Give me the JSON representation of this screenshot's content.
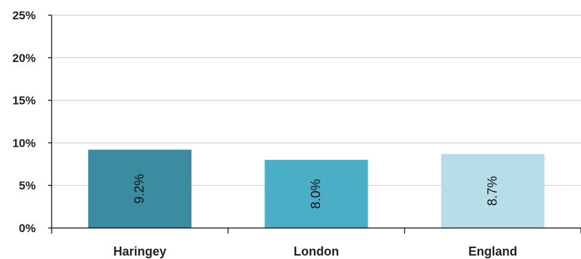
{
  "chart_data": {
    "type": "bar",
    "title": "",
    "xlabel": "",
    "ylabel": "",
    "categories": [
      "Haringey",
      "London",
      "England"
    ],
    "values": [
      9.2,
      8.0,
      8.7
    ],
    "data_labels": [
      "9.2%",
      "8.0%",
      "8.7%"
    ],
    "bar_colors": [
      "#3b8ba1",
      "#4aaec6",
      "#b7dde8"
    ],
    "ylim": [
      0,
      25
    ],
    "yticks": [
      0,
      5,
      10,
      15,
      20,
      25
    ],
    "ytick_labels": [
      "0%",
      "5%",
      "10%",
      "15%",
      "20%",
      "25%"
    ],
    "grid": true,
    "legend": "none",
    "data_label_orientation": "vertical"
  }
}
